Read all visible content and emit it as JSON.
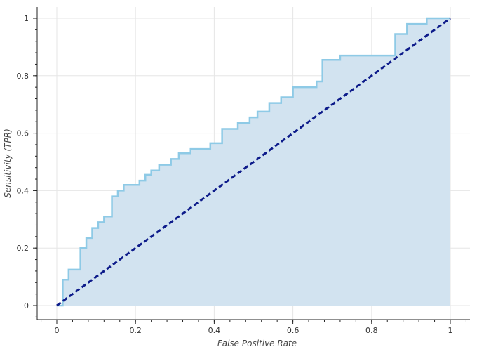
{
  "chart_data": {
    "type": "area",
    "title": "",
    "xlabel": "False Positive Rate",
    "ylabel": "Sensitivity (TPR)",
    "xlim": [
      -0.05,
      1.05
    ],
    "ylim": [
      -0.05,
      1.03
    ],
    "grid": true,
    "x_ticks": [
      0,
      0.2,
      0.4,
      0.6,
      0.8,
      1
    ],
    "x_tick_labels": [
      "0",
      "0.2",
      "0.4",
      "0.6",
      "0.8",
      "1"
    ],
    "y_ticks": [
      0,
      0.2,
      0.4,
      0.6,
      0.8,
      1
    ],
    "y_tick_labels": [
      "0",
      "0.2",
      "0.4",
      "0.6",
      "0.8",
      "1"
    ],
    "series": [
      {
        "kind": "roc-step-area",
        "x": [
          0,
          0.015,
          0.015,
          0.03,
          0.03,
          0.06,
          0.06,
          0.075,
          0.075,
          0.09,
          0.09,
          0.105,
          0.105,
          0.12,
          0.12,
          0.14,
          0.14,
          0.155,
          0.155,
          0.17,
          0.17,
          0.21,
          0.21,
          0.225,
          0.225,
          0.24,
          0.24,
          0.26,
          0.26,
          0.29,
          0.29,
          0.31,
          0.31,
          0.34,
          0.34,
          0.39,
          0.39,
          0.42,
          0.42,
          0.46,
          0.46,
          0.49,
          0.49,
          0.51,
          0.51,
          0.54,
          0.54,
          0.57,
          0.57,
          0.6,
          0.6,
          0.66,
          0.66,
          0.675,
          0.675,
          0.72,
          0.72,
          0.86,
          0.86,
          0.89,
          0.89,
          0.94,
          0.94,
          1
        ],
        "y": [
          0,
          0,
          0.09,
          0.09,
          0.125,
          0.125,
          0.2,
          0.2,
          0.235,
          0.235,
          0.27,
          0.27,
          0.29,
          0.29,
          0.31,
          0.31,
          0.38,
          0.38,
          0.4,
          0.4,
          0.42,
          0.42,
          0.435,
          0.435,
          0.455,
          0.455,
          0.47,
          0.47,
          0.49,
          0.49,
          0.51,
          0.51,
          0.53,
          0.53,
          0.545,
          0.545,
          0.565,
          0.565,
          0.615,
          0.615,
          0.635,
          0.635,
          0.655,
          0.655,
          0.675,
          0.675,
          0.705,
          0.705,
          0.725,
          0.725,
          0.76,
          0.76,
          0.78,
          0.78,
          0.855,
          0.855,
          0.87,
          0.87,
          0.945,
          0.945,
          0.98,
          0.98,
          1,
          1
        ]
      },
      {
        "kind": "diagonal-reference",
        "x": [
          0,
          1
        ],
        "y": [
          0,
          1
        ]
      }
    ]
  },
  "colors": {
    "area_fill": "#d2e3f0",
    "roc_line": "#8ecae6",
    "diagonal": "#0d1b8a",
    "grid": "#e6e6e6",
    "axis": "#222222"
  }
}
